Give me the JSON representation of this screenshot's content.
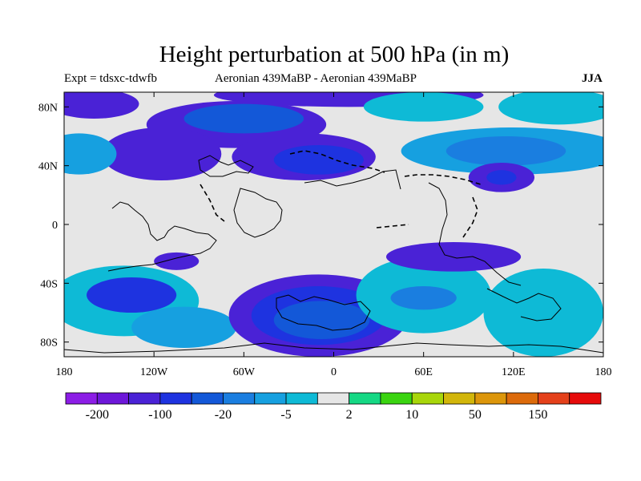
{
  "title": "Height perturbation at 500 hPa (in m)",
  "subtitle_left": "Expt = tdsxc-tdwfb",
  "subtitle_center": "Aeronian 439MaBP - Aeronian 439MaBP",
  "subtitle_right": "JJA",
  "map": {
    "lon_range": [
      -180,
      180
    ],
    "lat_range": [
      -90,
      90
    ],
    "x_ticks": [
      {
        "lon": -180,
        "label": "180"
      },
      {
        "lon": -120,
        "label": "120W"
      },
      {
        "lon": -60,
        "label": "60W"
      },
      {
        "lon": 0,
        "label": "0"
      },
      {
        "lon": 60,
        "label": "60E"
      },
      {
        "lon": 120,
        "label": "120E"
      },
      {
        "lon": 180,
        "label": "180"
      }
    ],
    "y_ticks": [
      {
        "lat": 80,
        "label": "80N"
      },
      {
        "lat": 40,
        "label": "40N"
      },
      {
        "lat": 0,
        "label": "0"
      },
      {
        "lat": -40,
        "label": "40S"
      },
      {
        "lat": -80,
        "label": "80S"
      }
    ]
  },
  "colorbar": {
    "colors": [
      "#8c1de6",
      "#6d17d9",
      "#4a22d6",
      "#1e33e0",
      "#1358d8",
      "#1a7ee0",
      "#16a0e0",
      "#0ebad6",
      "#e6e6e6",
      "#15d884",
      "#3ad410",
      "#a8d60a",
      "#d2b60a",
      "#dc960a",
      "#dc6a0a",
      "#e4401a",
      "#e60a0a"
    ],
    "labels": [
      {
        "boundary": 1,
        "text": "-200"
      },
      {
        "boundary": 3,
        "text": "-100"
      },
      {
        "boundary": 5,
        "text": "-20"
      },
      {
        "boundary": 7,
        "text": "-5"
      },
      {
        "boundary": 9,
        "text": "2"
      },
      {
        "boundary": 11,
        "text": "10"
      },
      {
        "boundary": 13,
        "text": "50"
      },
      {
        "boundary": 15,
        "text": "150"
      }
    ]
  },
  "field_blobs": [
    {
      "lon": -65,
      "lat": 68,
      "rlon": 60,
      "rlat": 16,
      "level": 2
    },
    {
      "lon": -60,
      "lat": 72,
      "rlon": 40,
      "rlat": 10,
      "level": 4
    },
    {
      "lon": 10,
      "lat": 88,
      "rlon": 90,
      "rlat": 8,
      "level": 2
    },
    {
      "lon": -20,
      "lat": 46,
      "rlon": 48,
      "rlat": 16,
      "level": 2
    },
    {
      "lon": -10,
      "lat": 44,
      "rlon": 30,
      "rlat": 10,
      "level": 3
    },
    {
      "lon": -115,
      "lat": 48,
      "rlon": 40,
      "rlat": 18,
      "level": 2
    },
    {
      "lon": -170,
      "lat": 48,
      "rlon": 25,
      "rlat": 14,
      "level": 6
    },
    {
      "lon": 120,
      "lat": 50,
      "rlon": 75,
      "rlat": 16,
      "level": 6
    },
    {
      "lon": 115,
      "lat": 50,
      "rlon": 40,
      "rlat": 10,
      "level": 5
    },
    {
      "lon": 112,
      "lat": 32,
      "rlon": 22,
      "rlat": 10,
      "level": 2
    },
    {
      "lon": 112,
      "lat": 32,
      "rlon": 10,
      "rlat": 5,
      "level": 3
    },
    {
      "lon": 150,
      "lat": 80,
      "rlon": 40,
      "rlat": 12,
      "level": 7
    },
    {
      "lon": 60,
      "lat": 80,
      "rlon": 40,
      "rlat": 10,
      "level": 7
    },
    {
      "lon": -160,
      "lat": 82,
      "rlon": 30,
      "rlat": 10,
      "level": 2
    },
    {
      "lon": -140,
      "lat": -52,
      "rlon": 50,
      "rlat": 24,
      "level": 7
    },
    {
      "lon": -135,
      "lat": -48,
      "rlon": 30,
      "rlat": 12,
      "level": 3
    },
    {
      "lon": -100,
      "lat": -70,
      "rlon": 35,
      "rlat": 14,
      "level": 6
    },
    {
      "lon": -10,
      "lat": -62,
      "rlon": 60,
      "rlat": 28,
      "level": 2
    },
    {
      "lon": -10,
      "lat": -62,
      "rlon": 45,
      "rlat": 20,
      "level": 3
    },
    {
      "lon": -8,
      "lat": -65,
      "rlon": 32,
      "rlat": 13,
      "level": 4
    },
    {
      "lon": 60,
      "lat": -48,
      "rlon": 45,
      "rlat": 26,
      "level": 7
    },
    {
      "lon": 60,
      "lat": -50,
      "rlon": 22,
      "rlat": 8,
      "level": 5
    },
    {
      "lon": 140,
      "lat": -60,
      "rlon": 40,
      "rlat": 30,
      "level": 7
    },
    {
      "lon": 80,
      "lat": -22,
      "rlon": 45,
      "rlat": 10,
      "level": 2
    },
    {
      "lon": -105,
      "lat": -25,
      "rlon": 15,
      "rlat": 6,
      "level": 2
    }
  ]
}
